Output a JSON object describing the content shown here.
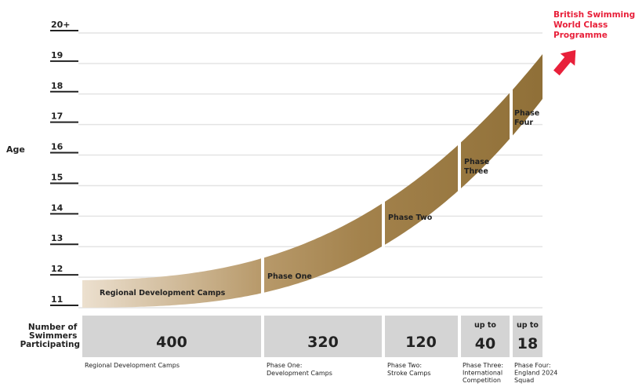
{
  "axis": {
    "title": "Age",
    "ticks": [
      "11",
      "12",
      "13",
      "14",
      "15",
      "16",
      "17",
      "18",
      "19",
      "20+"
    ]
  },
  "programme": {
    "text": [
      "British Swimming",
      "World Class",
      "Programme"
    ],
    "color": "#e8203a"
  },
  "phases": [
    {
      "id": "regional",
      "label": [
        "Regional Development Camps"
      ],
      "count": "400",
      "count_prefix": "",
      "caption": [
        "Regional Development Camps"
      ]
    },
    {
      "id": "phase-one",
      "label": [
        "Phase One"
      ],
      "count": "320",
      "count_prefix": "",
      "caption": [
        "Phase One:",
        "Development Camps"
      ]
    },
    {
      "id": "phase-two",
      "label": [
        "Phase Two"
      ],
      "count": "120",
      "count_prefix": "",
      "caption": [
        "Phase Two:",
        "Stroke Camps"
      ]
    },
    {
      "id": "phase-three",
      "label": [
        "Phase",
        "Three"
      ],
      "count": "40",
      "count_prefix": "up to",
      "caption": [
        "Phase Three:",
        "International",
        "Competition"
      ]
    },
    {
      "id": "phase-four",
      "label": [
        "Phase",
        "Four"
      ],
      "count": "18",
      "count_prefix": "up to",
      "caption": [
        "Phase Four:",
        "England 2024",
        "Squad"
      ]
    }
  ],
  "participation": {
    "label": [
      "Number of",
      "Swimmers",
      "Participating"
    ]
  },
  "colors": {
    "band_light": "#e6d8c3",
    "band_dark": "#9a7a43",
    "count_box": "#d4d4d4",
    "grid": "#e4e4e4"
  }
}
